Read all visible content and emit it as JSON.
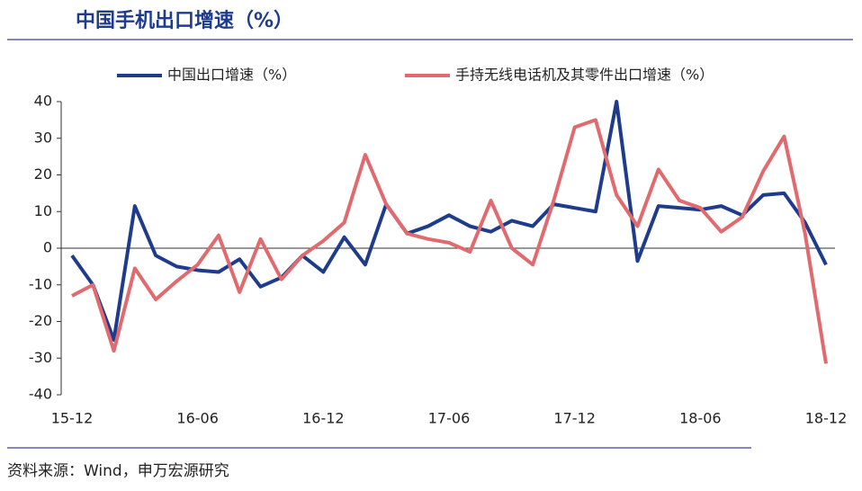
{
  "chart_data": {
    "type": "line",
    "title": "中国手机出口增速（%）",
    "source": "资料来源：Wind，申万宏源研究",
    "categories": [
      "15-12",
      null,
      null,
      null,
      null,
      null,
      "16-06",
      null,
      null,
      null,
      null,
      null,
      "16-12",
      null,
      null,
      null,
      null,
      null,
      "17-06",
      null,
      null,
      null,
      null,
      null,
      "17-12",
      null,
      null,
      null,
      null,
      null,
      "18-06",
      null,
      null,
      null,
      null,
      null,
      "18-12"
    ],
    "series": [
      {
        "name": "中国出口增速（%）",
        "color": "#1f3c8c",
        "values": [
          -2,
          -10,
          -25,
          11.5,
          -2,
          -5,
          -6,
          -6.5,
          -3,
          -10.5,
          -8,
          -2,
          -6.5,
          3,
          -4.5,
          12,
          4,
          6,
          9,
          6,
          4.5,
          7.5,
          6,
          12,
          11,
          10,
          40,
          -3.5,
          11.5,
          11,
          10.5,
          11.5,
          9,
          14.5,
          15,
          7,
          -4.5
        ]
      },
      {
        "name": "手持无线电话机及其零件出口增速（%）",
        "color": "#e06a6e",
        "values": [
          -13,
          -10,
          -28,
          -5.5,
          -14,
          -9,
          -4.5,
          3.5,
          -12,
          2.5,
          -8.5,
          -2,
          2,
          7,
          25.5,
          12,
          4,
          2.5,
          1.5,
          -1,
          13,
          0,
          -4.5,
          13,
          33,
          35,
          14.5,
          6,
          21.5,
          13,
          11,
          4.5,
          8.5,
          21,
          30.5,
          4,
          -31.5
        ]
      }
    ],
    "ylim": [
      -40,
      40
    ],
    "yticks": [
      -40,
      -30,
      -20,
      -10,
      0,
      10,
      20,
      30,
      40
    ],
    "grid": false,
    "legend": "top"
  }
}
